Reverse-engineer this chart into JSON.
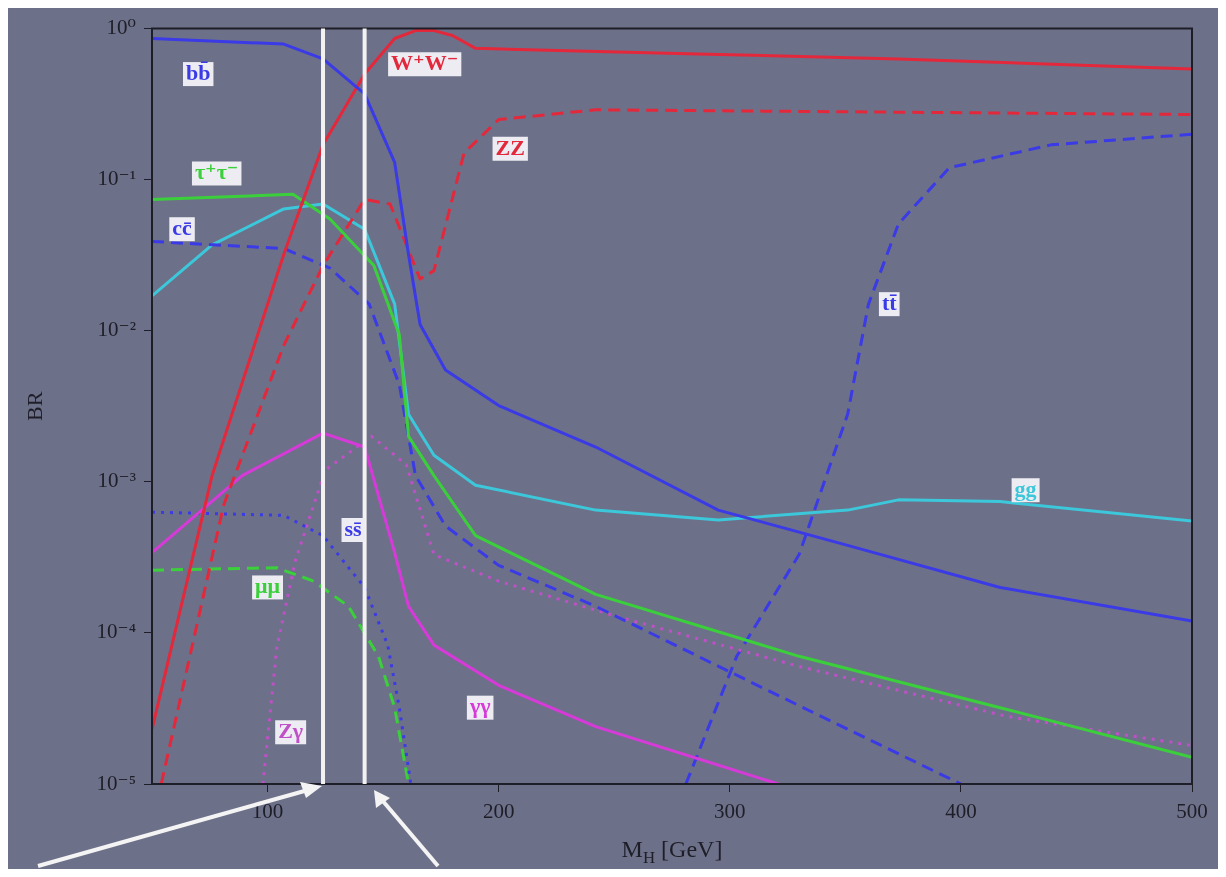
{
  "chart_data": {
    "type": "line",
    "xlabel": "M$_{H}$ [GeV]",
    "ylabel": "BR",
    "log": "y",
    "xlim": [
      50,
      500
    ],
    "xticks": [
      100,
      200,
      300,
      400,
      500
    ],
    "ylim": [
      1e-05,
      1
    ],
    "yticks": [
      {
        "value": 1e-05,
        "label": "10⁻⁵"
      },
      {
        "value": 0.0001,
        "label": "10⁻⁴"
      },
      {
        "value": 0.001,
        "label": "10⁻³"
      },
      {
        "value": 0.01,
        "label": "10⁻²"
      },
      {
        "value": 0.1,
        "label": "10⁻¹"
      },
      {
        "value": 1,
        "label": "10⁰"
      }
    ],
    "series": [
      {
        "name": "bb̄",
        "color": "#3a3ae6",
        "line_style": "solid",
        "x": [
          50,
          107,
          124,
          142,
          155,
          161,
          166,
          177,
          200,
          242,
          295,
          351,
          417,
          500
        ],
        "values": [
          0.86,
          0.79,
          0.63,
          0.37,
          0.13,
          0.032,
          0.011,
          0.0055,
          0.0032,
          0.0017,
          0.00065,
          0.00038,
          0.0002,
          0.00012
        ]
      },
      {
        "name": "W⁺W⁻",
        "color": "#e3283c",
        "line_style": "solid",
        "x": [
          50,
          76,
          107,
          124,
          142,
          155,
          164,
          172,
          180,
          190,
          286,
          373,
          500
        ],
        "values": [
          2.3e-05,
          0.0011,
          0.032,
          0.17,
          0.5,
          0.86,
          0.97,
          0.97,
          0.9,
          0.74,
          0.68,
          0.63,
          0.54
        ]
      },
      {
        "name": "ZZ",
        "color": "#e3283c",
        "line_style": "dashed",
        "x": [
          54,
          81,
          107,
          124,
          142,
          153,
          166,
          172,
          185,
          200,
          242,
          500
        ],
        "values": [
          1e-05,
          0.0007,
          0.008,
          0.027,
          0.074,
          0.069,
          0.022,
          0.025,
          0.15,
          0.25,
          0.29,
          0.27
        ]
      },
      {
        "name": "τ⁺τ⁻",
        "color": "#3bd03b",
        "line_style": "solid",
        "x": [
          50,
          111,
          127,
          146,
          157,
          161,
          172,
          190,
          242,
          330,
          417,
          500
        ],
        "values": [
          0.074,
          0.08,
          0.055,
          0.027,
          0.0094,
          0.002,
          0.0011,
          0.00044,
          0.00018,
          7e-05,
          3.2e-05,
          1.5e-05
        ]
      },
      {
        "name": "cc̄",
        "color": "#3a3ae6",
        "line_style": "dashed",
        "x": [
          50,
          107,
          127,
          144,
          157,
          164,
          177,
          200,
          242,
          330,
          400
        ],
        "values": [
          0.039,
          0.035,
          0.026,
          0.015,
          0.0044,
          0.0011,
          0.00051,
          0.00028,
          0.00015,
          3.3e-05,
          1e-05
        ]
      },
      {
        "name": "gg",
        "color": "#3cc8da",
        "line_style": "solid",
        "x": [
          50,
          76,
          107,
          124,
          142,
          155,
          161,
          172,
          190,
          242,
          295,
          351,
          373,
          417,
          500
        ],
        "values": [
          0.017,
          0.037,
          0.064,
          0.069,
          0.047,
          0.015,
          0.0028,
          0.0015,
          0.00095,
          0.00065,
          0.00056,
          0.00065,
          0.00076,
          0.00074,
          0.00055
        ]
      },
      {
        "name": "γγ",
        "color": "#d63ad8",
        "line_style": "solid",
        "x": [
          50,
          89,
          124,
          142,
          155,
          161,
          172,
          200,
          242,
          321
        ],
        "values": [
          0.00034,
          0.0011,
          0.0021,
          0.0017,
          0.00034,
          0.00015,
          8.3e-05,
          4.5e-05,
          2.4e-05,
          1e-05
        ]
      },
      {
        "name": "ss̄",
        "color": "#3a3ae6",
        "line_style": "dotted",
        "x": [
          50,
          107,
          124,
          142,
          152,
          157,
          162
        ],
        "values": [
          0.00063,
          0.0006,
          0.00044,
          0.0002,
          8.3e-05,
          3.2e-05,
          1e-05
        ]
      },
      {
        "name": "μμ",
        "color": "#3bd03b",
        "line_style": "dashed",
        "x": [
          50,
          104,
          120,
          135,
          148,
          155,
          161
        ],
        "values": [
          0.00026,
          0.00027,
          0.00022,
          0.00015,
          7e-05,
          3.2e-05,
          1e-05
        ]
      },
      {
        "name": "Zγ",
        "color": "#c050c8",
        "line_style": "dotted",
        "x": [
          98,
          104,
          112,
          125,
          145,
          160,
          172,
          200,
          250,
          330,
          420,
          500
        ],
        "values": [
          1e-05,
          8e-05,
          0.0003,
          0.0012,
          0.002,
          0.0013,
          0.00033,
          0.00022,
          0.00013,
          6e-05,
          2.8e-05,
          1.8e-05
        ]
      },
      {
        "name": "tt̄",
        "color": "#3a3ae6",
        "line_style": "dashed",
        "x": [
          281,
          303,
          330,
          351,
          360,
          373,
          395,
          439,
          500
        ],
        "values": [
          1e-05,
          7e-05,
          0.00033,
          0.0028,
          0.015,
          0.051,
          0.12,
          0.17,
          0.2
        ]
      }
    ],
    "ref_lines": [
      {
        "axis": "x",
        "value": 124,
        "color": "#f2f2f2"
      },
      {
        "axis": "x",
        "value": 142,
        "color": "#f2f2f2"
      }
    ]
  }
}
